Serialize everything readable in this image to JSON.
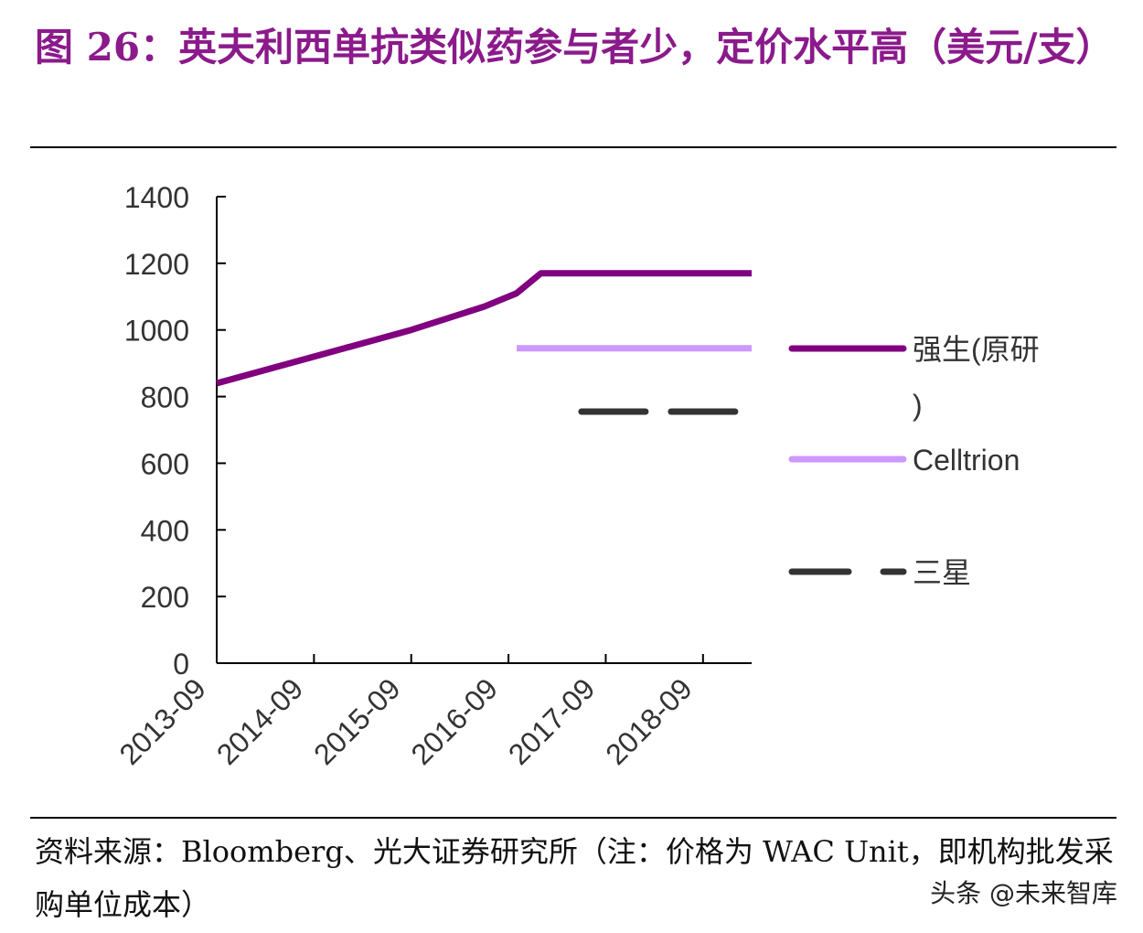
{
  "title": "图 26：英夫利西单抗类似药参与者少，定价水平高（美元/支）",
  "source": "资料来源：Bloomberg、光大证券研究所（注：价格为 WAC Unit，即机构批发采购单位成本）",
  "watermark": "头条 @未来智库",
  "chart_data": {
    "type": "line",
    "title": "",
    "xlabel": "",
    "ylabel": "",
    "ylim": [
      0,
      1400
    ],
    "yticks": [
      0,
      200,
      400,
      600,
      800,
      1000,
      1200,
      1400
    ],
    "x_range": [
      "2013-09",
      "2019-03"
    ],
    "x_ticks": [
      "2013-09",
      "2014-09",
      "2015-09",
      "2016-09",
      "2017-09",
      "2018-09"
    ],
    "legend_position": "right",
    "grid": false,
    "series": [
      {
        "name": "强生(原研)",
        "color": "#800080",
        "style": "solid",
        "points": [
          [
            "2013-09",
            840
          ],
          [
            "2014-09",
            920
          ],
          [
            "2015-09",
            1000
          ],
          [
            "2016-06",
            1070
          ],
          [
            "2016-10",
            1110
          ],
          [
            "2017-01",
            1170
          ],
          [
            "2019-03",
            1170
          ]
        ]
      },
      {
        "name": "Celltrion",
        "color": "#CC99FF",
        "style": "solid",
        "points": [
          [
            "2016-10",
            945
          ],
          [
            "2019-03",
            945
          ]
        ]
      },
      {
        "name": "三星",
        "color": "#333333",
        "style": "dashed",
        "points": [
          [
            "2017-06",
            755
          ],
          [
            "2019-03",
            755
          ]
        ]
      }
    ]
  }
}
